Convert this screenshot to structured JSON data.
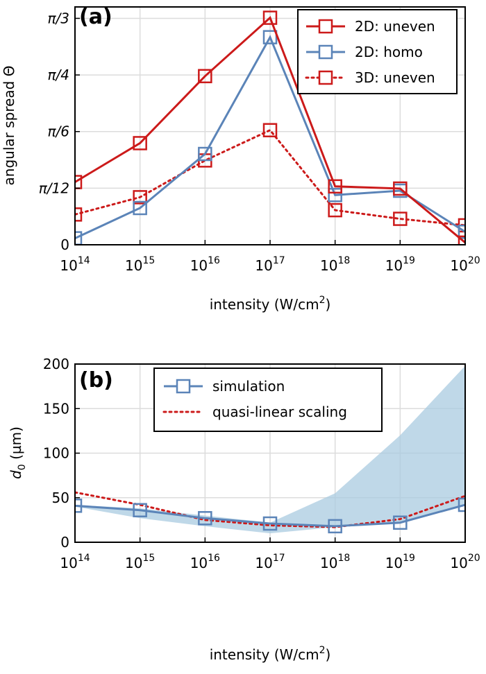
{
  "chart_data": [
    {
      "type": "line",
      "panel_label": "(a)",
      "xlabel": "intensity (W/cm",
      "xlabel_sup": "2",
      "xlabel_close": ")",
      "ylabel": "angular spread Θ",
      "x_scale": "log",
      "x": [
        100000000000000.0,
        1000000000000000.0,
        1e+16,
        1e+17,
        1e+18,
        1e+19,
        1e+20
      ],
      "x_tick_base": "10",
      "x_tick_exps": [
        "14",
        "15",
        "16",
        "17",
        "18",
        "19",
        "20"
      ],
      "y_tick_values": [
        0,
        0.2618,
        0.5236,
        0.7854,
        1.0472
      ],
      "y_tick_labels": [
        "0",
        "π/12",
        "π/6",
        "π/4",
        "π/3"
      ],
      "ylim": [
        0,
        1.1
      ],
      "grid": true,
      "legend_position": "top-right",
      "series": [
        {
          "name": "2D: uneven",
          "style": "solid",
          "color": "#cc1a1a",
          "values": [
            0.29,
            0.47,
            0.78,
            1.05,
            0.27,
            0.26,
            0.01
          ]
        },
        {
          "name": "2D: homo",
          "style": "solid",
          "color": "#5b84b8",
          "values": [
            0.03,
            0.17,
            0.42,
            0.96,
            0.23,
            0.25,
            0.06
          ]
        },
        {
          "name": "3D: uneven",
          "style": "dotted",
          "color": "#cc1a1a",
          "values": [
            0.14,
            0.22,
            0.39,
            0.53,
            0.16,
            0.12,
            0.09
          ]
        }
      ]
    },
    {
      "type": "line",
      "panel_label": "(b)",
      "xlabel": "intensity (W/cm",
      "xlabel_sup": "2",
      "xlabel_close": ")",
      "ylabel_main": "d",
      "ylabel_sub": "0",
      "ylabel_unit": " (µm)",
      "x_scale": "log",
      "x": [
        100000000000000.0,
        1000000000000000.0,
        1e+16,
        1e+17,
        1e+18,
        1e+19,
        1e+20
      ],
      "x_tick_base": "10",
      "x_tick_exps": [
        "14",
        "15",
        "16",
        "17",
        "18",
        "19",
        "20"
      ],
      "y_ticks": [
        0,
        50,
        100,
        150,
        200
      ],
      "ylim": [
        0,
        200
      ],
      "grid": true,
      "legend_position": "top-center",
      "series": [
        {
          "name": "simulation",
          "style": "solid",
          "color": "#5b84b8",
          "values": [
            41,
            36,
            27,
            21,
            18,
            22,
            42
          ]
        },
        {
          "name": "quasi-linear scaling",
          "style": "dotted",
          "color": "#cc1a1a",
          "values": [
            56,
            42,
            25,
            19,
            17,
            26,
            52
          ]
        }
      ],
      "band": {
        "color": "#a9cbe0",
        "lower": [
          40,
          27,
          18,
          10,
          17,
          22,
          41
        ],
        "upper": [
          42,
          38,
          30,
          22,
          55,
          120,
          198
        ]
      }
    }
  ]
}
